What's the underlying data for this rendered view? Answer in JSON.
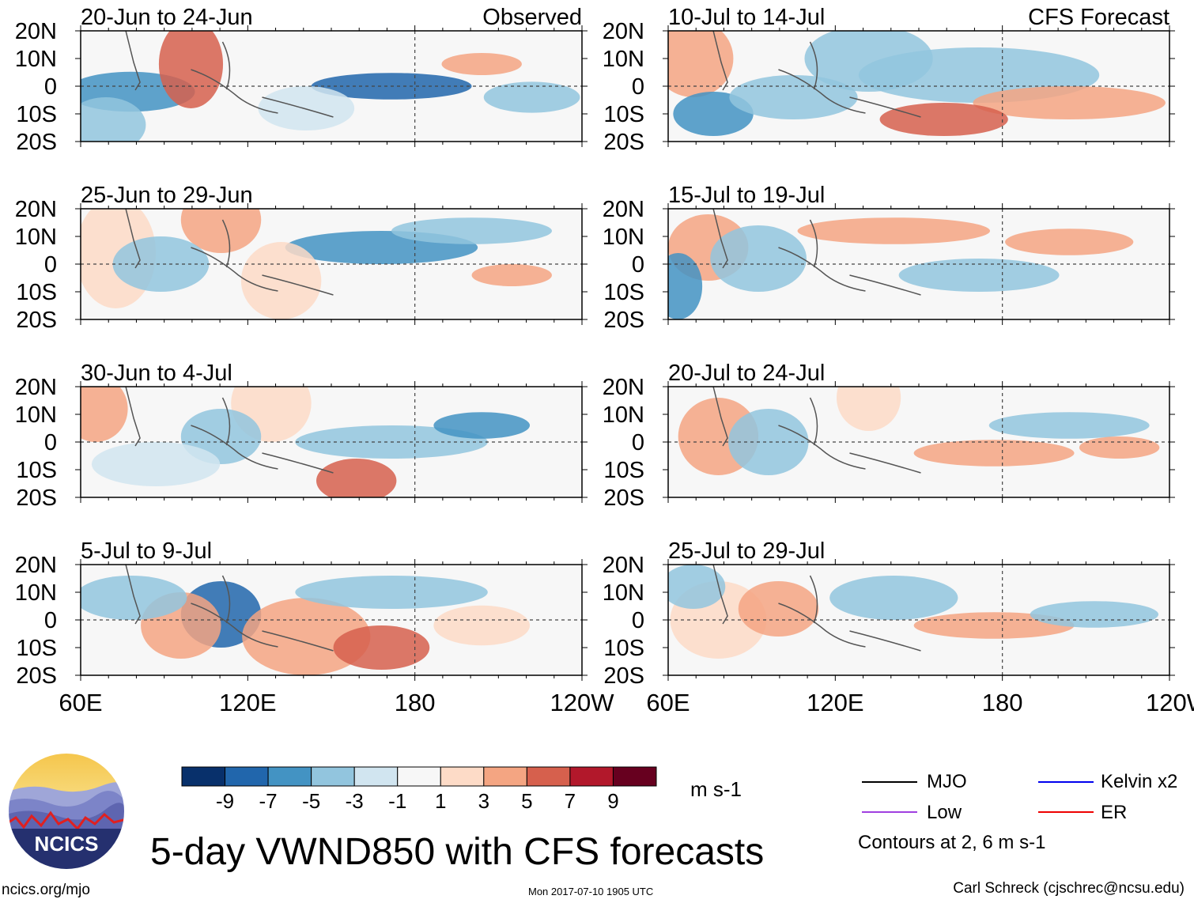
{
  "title": "5-day VWND850 with CFS forecasts",
  "colorbar": {
    "units": "m s-1",
    "tick_labels": [
      "-9",
      "-7",
      "-5",
      "-3",
      "-1",
      "1",
      "3",
      "5",
      "7",
      "9"
    ],
    "colors": [
      "#08306b",
      "#2166ac",
      "#4393c3",
      "#92c5de",
      "#d1e5f0",
      "#f7f7f7",
      "#fddbc7",
      "#f4a582",
      "#d6604d",
      "#b2182b",
      "#67001f"
    ]
  },
  "legend": {
    "items": [
      {
        "label": "MJO",
        "color": "#000000"
      },
      {
        "label": "Kelvin x2",
        "color": "#0000ee"
      },
      {
        "label": "Low",
        "color": "#a040e0"
      },
      {
        "label": "ER",
        "color": "#ee0000"
      }
    ],
    "contours_note": "Contours at 2, 6 m s-1"
  },
  "footer": {
    "left": "ncics.org/mjo",
    "center": "Mon 2017-07-10 1905 UTC",
    "right": "Carl Schreck (cjschrec@ncsu.edu)"
  },
  "logo": {
    "text": "NCICS"
  },
  "chart_data": {
    "type": "heatmap",
    "variable": "VWND850",
    "lat_labels": [
      "20N",
      "10N",
      "0",
      "10S",
      "20S"
    ],
    "lon_labels": [
      "60E",
      "120E",
      "180",
      "120W"
    ],
    "columns": [
      {
        "header": "Observed",
        "panels": [
          "20-Jun to 24-Jun",
          "25-Jun to 29-Jun",
          "30-Jun to 4-Jul",
          "5-Jul to 9-Jul"
        ]
      },
      {
        "header": "CFS Forecast",
        "panels": [
          "10-Jul to 14-Jul",
          "15-Jul to 19-Jul",
          "20-Jul to 24-Jul",
          "25-Jul to 29-Jul"
        ]
      }
    ]
  }
}
